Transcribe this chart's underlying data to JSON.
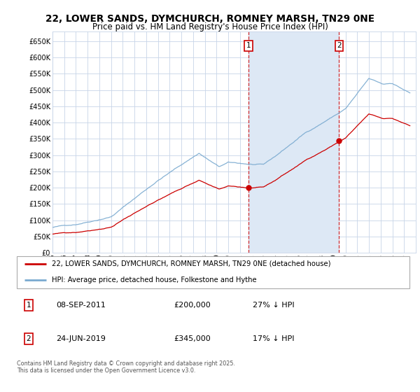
{
  "title_line1": "22, LOWER SANDS, DYMCHURCH, ROMNEY MARSH, TN29 0NE",
  "title_line2": "Price paid vs. HM Land Registry's House Price Index (HPI)",
  "ylim": [
    0,
    680000
  ],
  "yticks": [
    0,
    50000,
    100000,
    150000,
    200000,
    250000,
    300000,
    350000,
    400000,
    450000,
    500000,
    550000,
    600000,
    650000
  ],
  "ytick_labels": [
    "£0",
    "£50K",
    "£100K",
    "£150K",
    "£200K",
    "£250K",
    "£300K",
    "£350K",
    "£400K",
    "£450K",
    "£500K",
    "£550K",
    "£600K",
    "£650K"
  ],
  "bg_color": "#ffffff",
  "plot_bg_color": "#ffffff",
  "grid_color": "#c8d4e8",
  "red_line_color": "#cc0000",
  "blue_line_color": "#7aaad0",
  "sale1_year": 2011.708,
  "sale1_value": 200000,
  "sale2_year": 2019.458,
  "sale2_value": 345000,
  "span_color": "#dde8f5",
  "legend_label_red": "22, LOWER SANDS, DYMCHURCH, ROMNEY MARSH, TN29 0NE (detached house)",
  "legend_label_blue": "HPI: Average price, detached house, Folkestone and Hythe",
  "footer": "Contains HM Land Registry data © Crown copyright and database right 2025.\nThis data is licensed under the Open Government Licence v3.0.",
  "xstart": 1995,
  "xend": 2026
}
